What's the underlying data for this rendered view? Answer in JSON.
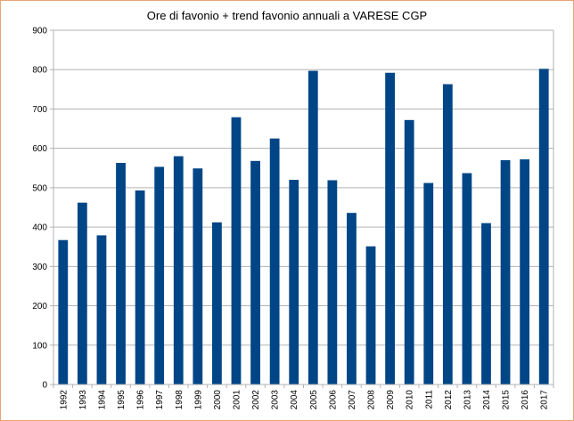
{
  "chart_data": {
    "type": "bar",
    "title": "Ore di favonio + trend favonio annuali a VARESE CGP",
    "xlabel": "",
    "ylabel": "",
    "ylim": [
      0,
      900
    ],
    "yticks": [
      0,
      100,
      200,
      300,
      400,
      500,
      600,
      700,
      800,
      900
    ],
    "grid": true,
    "legend": "none",
    "bar_color": "#004586",
    "categories": [
      "1992",
      "1993",
      "1994",
      "1995",
      "1996",
      "1997",
      "1998",
      "1999",
      "2000",
      "2001",
      "2002",
      "2003",
      "2004",
      "2005",
      "2006",
      "2007",
      "2008",
      "2009",
      "2010",
      "2011",
      "2012",
      "2013",
      "2014",
      "2015",
      "2016",
      "2017"
    ],
    "values": [
      367,
      462,
      379,
      563,
      493,
      553,
      580,
      549,
      412,
      679,
      568,
      625,
      520,
      797,
      519,
      436,
      351,
      792,
      672,
      512,
      763,
      537,
      410,
      570,
      572,
      802
    ]
  }
}
